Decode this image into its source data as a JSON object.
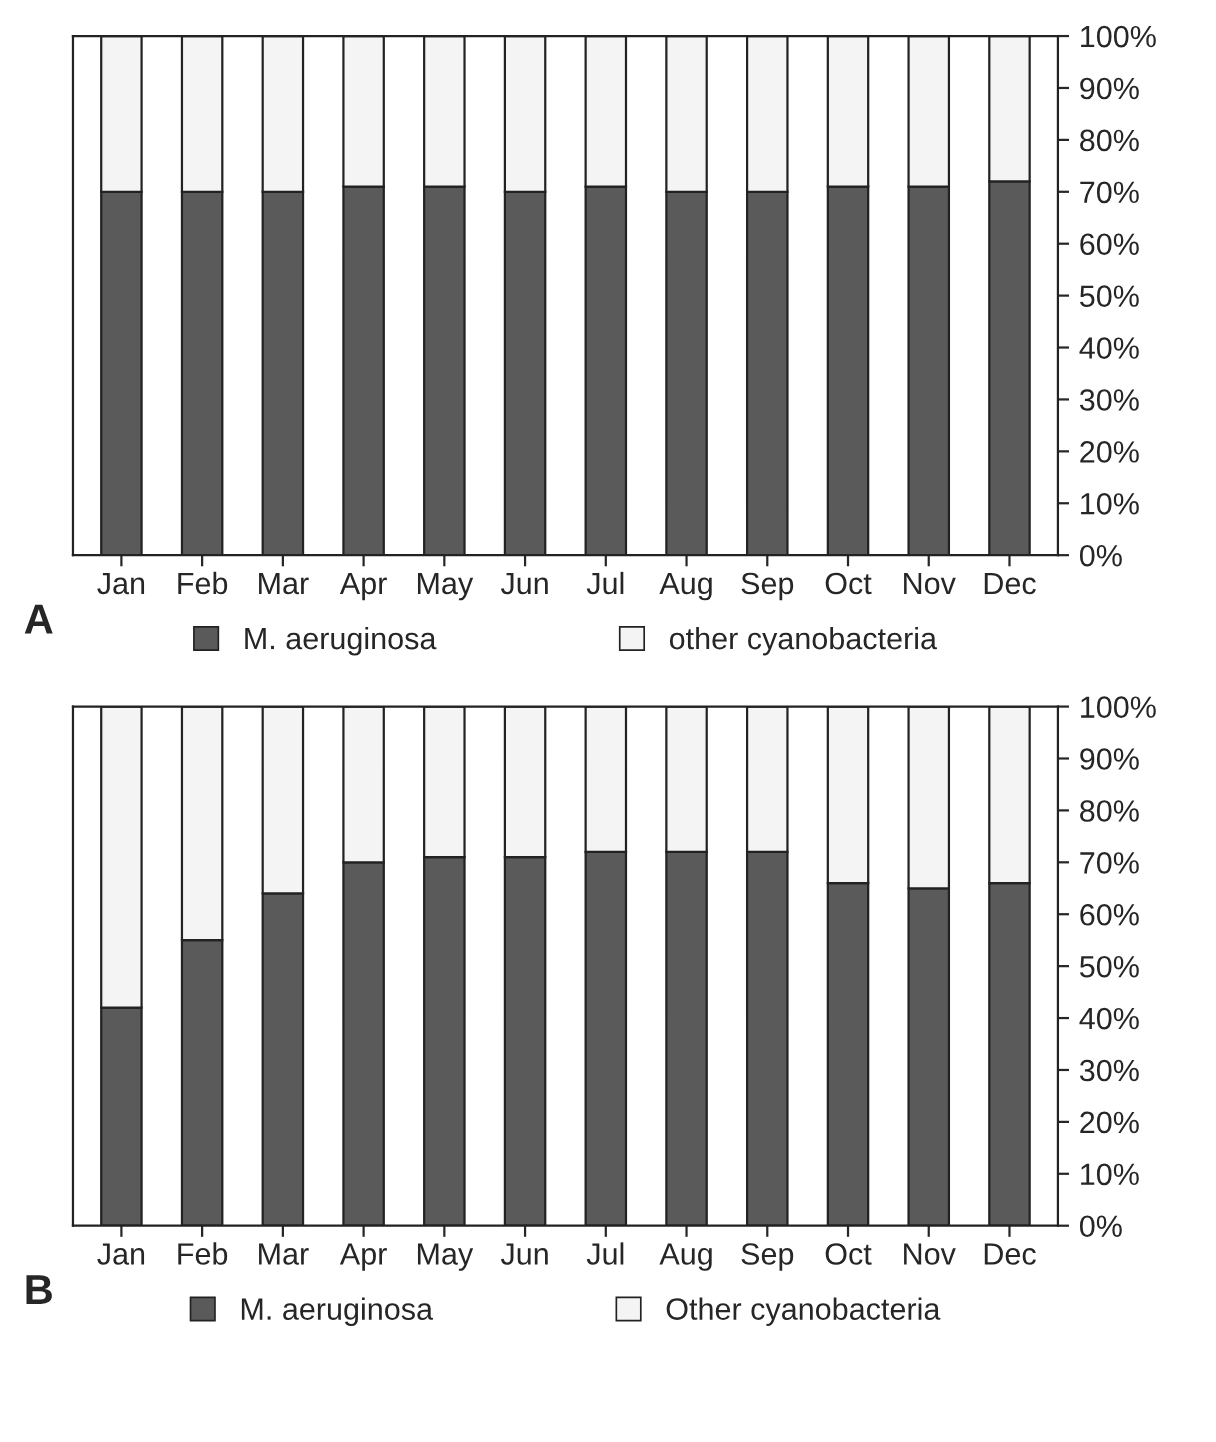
{
  "chart_data": [
    {
      "type": "bar",
      "stacked": true,
      "categories": [
        "Jan",
        "Feb",
        "Mar",
        "Apr",
        "May",
        "Jun",
        "Jul",
        "Aug",
        "Sep",
        "Oct",
        "Nov",
        "Dec"
      ],
      "series": [
        {
          "name": "M. aeruginosa",
          "color": "#5a5a5a",
          "values": [
            70,
            70,
            70,
            71,
            71,
            70,
            71,
            70,
            70,
            71,
            71,
            72
          ]
        },
        {
          "name": "other cyanobacteria",
          "color": "#f4f4f4",
          "values": [
            30,
            30,
            30,
            29,
            29,
            30,
            29,
            30,
            30,
            29,
            29,
            28
          ]
        }
      ],
      "ylim": [
        0,
        100
      ],
      "yticks": [
        {
          "value": 0,
          "label": "0%"
        },
        {
          "value": 10,
          "label": "10%"
        },
        {
          "value": 20,
          "label": "20%"
        },
        {
          "value": 30,
          "label": "30%"
        },
        {
          "value": 40,
          "label": "40%"
        },
        {
          "value": 50,
          "label": "50%"
        },
        {
          "value": 60,
          "label": "60%"
        },
        {
          "value": 70,
          "label": "70%"
        },
        {
          "value": 80,
          "label": "80%"
        },
        {
          "value": 90,
          "label": "90%"
        },
        {
          "value": 100,
          "label": "100%"
        }
      ],
      "legend": "bottom",
      "grid": false,
      "annotations": [
        "A"
      ]
    },
    {
      "type": "bar",
      "stacked": true,
      "categories": [
        "Jan",
        "Feb",
        "Mar",
        "Apr",
        "May",
        "Jun",
        "Jul",
        "Aug",
        "Sep",
        "Oct",
        "Nov",
        "Dec"
      ],
      "series": [
        {
          "name": "M. aeruginosa",
          "color": "#5a5a5a",
          "values": [
            42,
            55,
            64,
            70,
            71,
            71,
            72,
            72,
            72,
            66,
            65,
            66
          ]
        },
        {
          "name": "Other cyanobacteria",
          "color": "#f4f4f4",
          "values": [
            58,
            45,
            36,
            30,
            29,
            29,
            28,
            28,
            28,
            34,
            35,
            34
          ]
        }
      ],
      "ylim": [
        0,
        100
      ],
      "yticks": [
        {
          "value": 0,
          "label": "0%"
        },
        {
          "value": 10,
          "label": "10%"
        },
        {
          "value": 20,
          "label": "20%"
        },
        {
          "value": 30,
          "label": "30%"
        },
        {
          "value": 40,
          "label": "40%"
        },
        {
          "value": 50,
          "label": "50%"
        },
        {
          "value": 60,
          "label": "60%"
        },
        {
          "value": 70,
          "label": "70%"
        },
        {
          "value": 80,
          "label": "80%"
        },
        {
          "value": 90,
          "label": "90%"
        },
        {
          "value": 100,
          "label": "100%"
        }
      ],
      "legend": "bottom",
      "grid": false,
      "annotations": [
        "B"
      ]
    }
  ]
}
